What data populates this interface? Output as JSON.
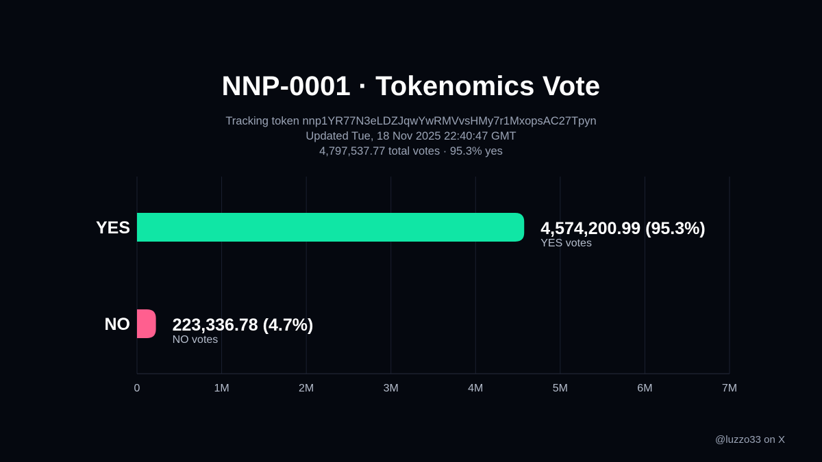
{
  "header": {
    "title": "NNP-0001 · Tokenomics Vote",
    "tracking": "Tracking token nnp1YR77N3eLDZJqwYwRMVvsHMy7r1MxopsAC27Tpyn",
    "updated": "Updated Tue, 18 Nov 2025 22:40:47 GMT",
    "summary": "4,797,537.77 total votes · 95.3% yes"
  },
  "footer": {
    "credit": "@luzzo33 on X"
  },
  "chart_data": {
    "type": "bar",
    "orientation": "horizontal",
    "categories": [
      "YES",
      "NO"
    ],
    "values": [
      4574200.99,
      223336.78
    ],
    "value_labels": [
      "4,574,200.99 (95.3%)",
      "223,336.78 (4.7%)"
    ],
    "sub_labels": [
      "YES votes",
      "NO votes"
    ],
    "colors": [
      "#10e6a5",
      "#ff5f8f"
    ],
    "xlim": [
      0,
      7000000
    ],
    "ticks": [
      0,
      1000000,
      2000000,
      3000000,
      4000000,
      5000000,
      6000000,
      7000000
    ],
    "tick_labels": [
      "0",
      "1M",
      "2M",
      "3M",
      "4M",
      "5M",
      "6M",
      "7M"
    ],
    "grid": true
  }
}
